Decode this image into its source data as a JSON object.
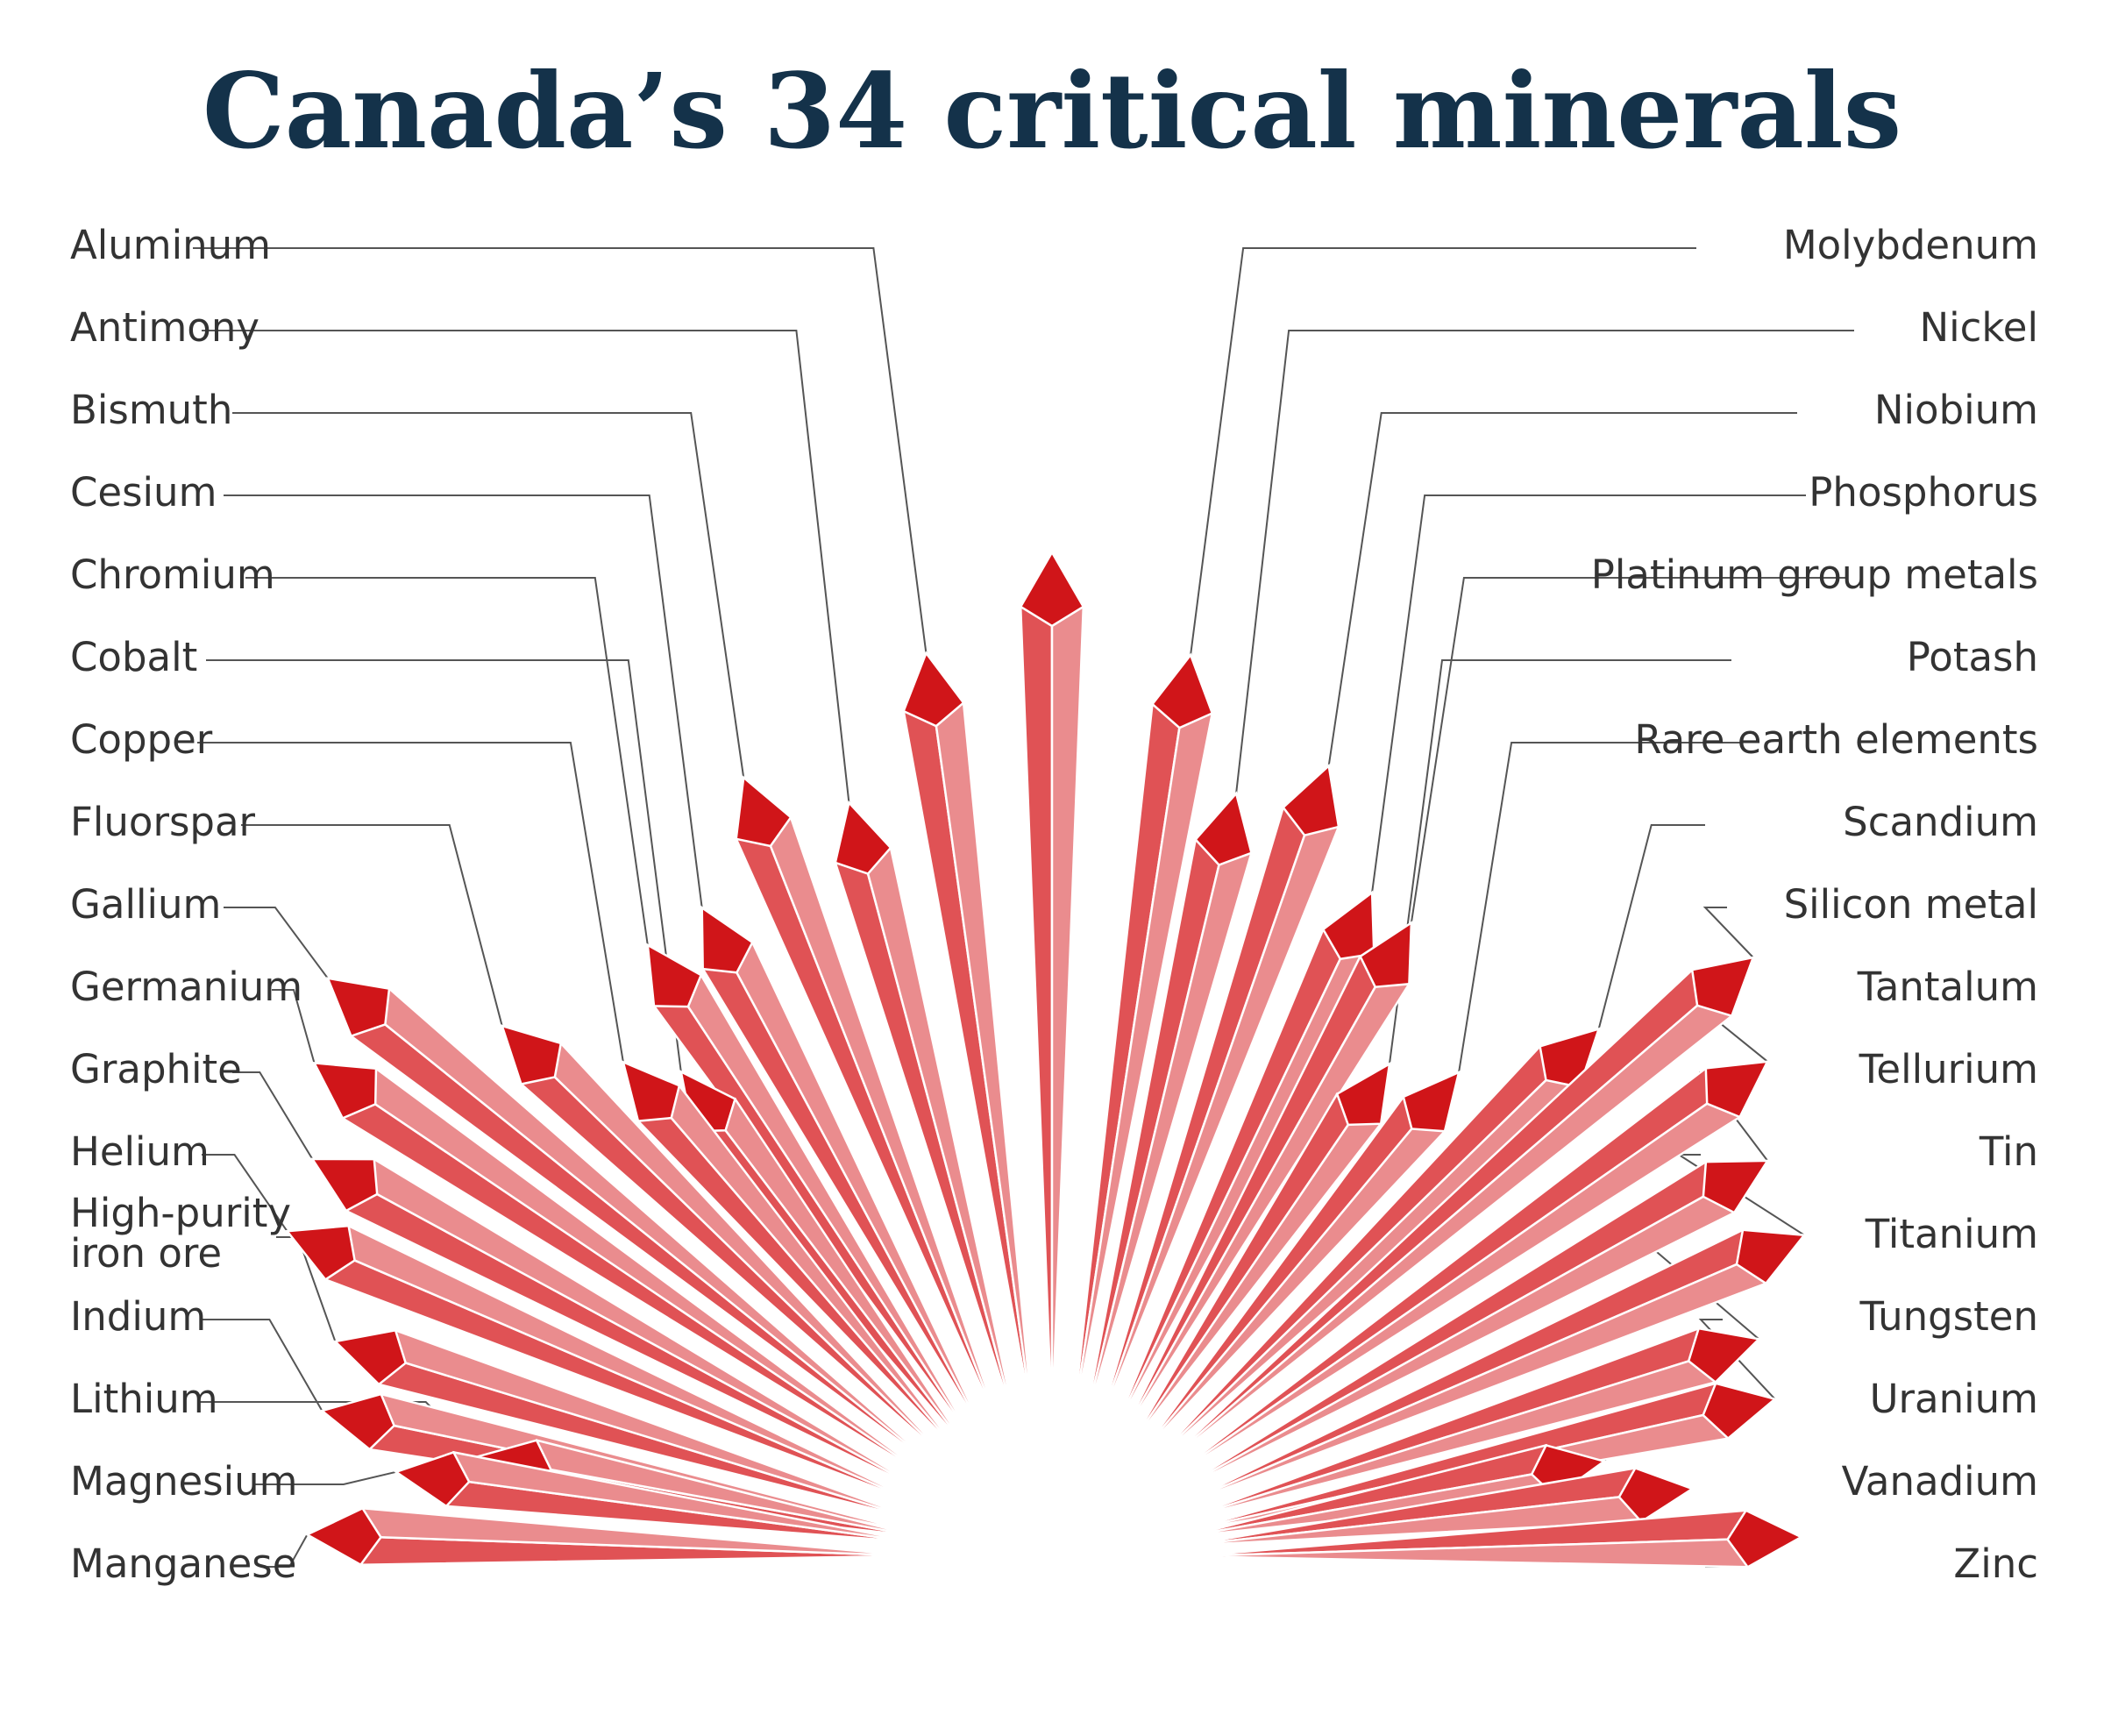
{
  "title": "Canada’s 34 critical minerals",
  "colors": {
    "title": "#14324a",
    "crystal_dark": "#e05255",
    "crystal_light": "#ea8c8e",
    "crystal_tip": "#d01519",
    "label_text": "#333333",
    "leader_line": "#555555"
  },
  "minerals_left": [
    "Aluminum",
    "Antimony",
    "Bismuth",
    "Cesium",
    "Chromium",
    "Cobalt",
    "Copper",
    "Fluorspar",
    "Gallium",
    "Germanium",
    "Graphite",
    "Helium",
    "High-purity iron ore",
    "Indium",
    "Lithium",
    "Magnesium",
    "Manganese"
  ],
  "minerals_right": [
    "Molybdenum",
    "Nickel",
    "Niobium",
    "Phosphorus",
    "Platinum group metals",
    "Potash",
    "Rare earth elements",
    "Scandium",
    "Silicon metal",
    "Tantalum",
    "Tellurium",
    "Tin",
    "Titanium",
    "Tungsten",
    "Uranium",
    "Vanadium",
    "Zinc"
  ]
}
